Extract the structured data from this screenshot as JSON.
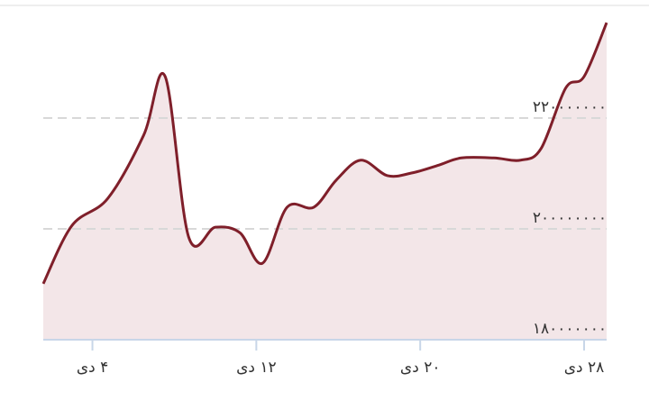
{
  "chart_data": {
    "type": "area",
    "x": [
      1.6,
      3.0,
      4.75,
      6.5,
      7.55,
      8.7,
      10.0,
      11.2,
      12.3,
      13.5,
      14.8,
      15.9,
      17.1,
      18.4,
      19.6,
      20.9,
      22.0,
      23.6,
      24.9,
      25.9,
      27.1,
      28.0,
      29.1
    ],
    "values": [
      190100000,
      200600000,
      205500000,
      216900000,
      227500000,
      198500000,
      200300000,
      199300000,
      193800000,
      203900000,
      203900000,
      208800000,
      212400000,
      209600000,
      210100000,
      211500000,
      212800000,
      212800000,
      212400000,
      214500000,
      225400000,
      227500000,
      237200000
    ],
    "color": "#7f1f2a",
    "fill": "#f3e6e8",
    "xlim": [
      1.6,
      29.1
    ],
    "xticks": [
      {
        "value": 4,
        "label": "۴ دی"
      },
      {
        "value": 12,
        "label": "۱۲ دی"
      },
      {
        "value": 20,
        "label": "۲۰ دی"
      },
      {
        "value": 28,
        "label": "۲۸ دی"
      }
    ],
    "ylim": [
      180000000,
      240000000
    ],
    "yticks": [
      {
        "value": 180000000,
        "label": "۱۸۰۰۰۰۰۰۰"
      },
      {
        "value": 200000000,
        "label": "۲۰۰۰۰۰۰۰۰"
      },
      {
        "value": 220000000,
        "label": "۲۲۰۰۰۰۰۰۰"
      }
    ],
    "grid": true
  }
}
